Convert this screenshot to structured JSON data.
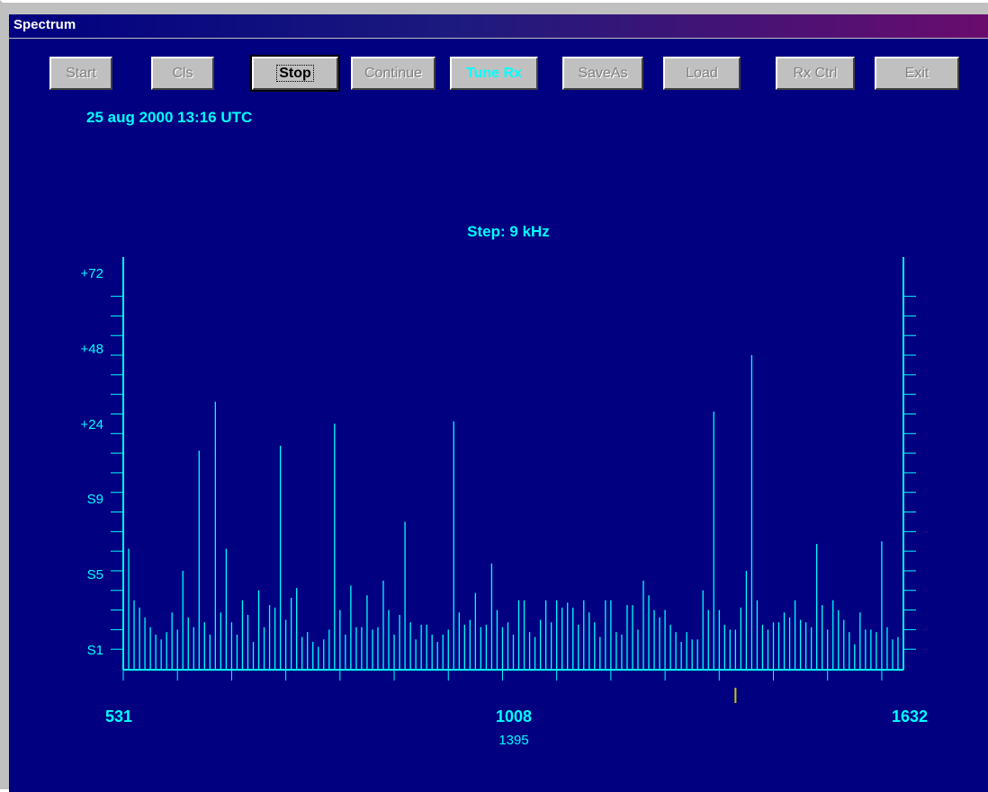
{
  "window": {
    "title": "Spectrum"
  },
  "toolbar": {
    "buttons": [
      {
        "label": "Start",
        "state": "disabled"
      },
      {
        "label": "Cls",
        "state": "disabled"
      },
      {
        "label": "Stop",
        "state": "active"
      },
      {
        "label": "Continue",
        "state": "disabled"
      },
      {
        "label": "Tune Rx",
        "state": "highlight"
      },
      {
        "label": "SaveAs",
        "state": "disabled"
      },
      {
        "label": "Load",
        "state": "disabled"
      },
      {
        "label": "Rx Ctrl",
        "state": "disabled"
      },
      {
        "label": "Exit",
        "state": "disabled"
      }
    ]
  },
  "status": {
    "timestamp": "25 aug 2000  13:16 UTC"
  },
  "colors": {
    "background": "#000080",
    "trace": "#00ffff",
    "marker": "#c8c800",
    "titlebar": "#000080"
  },
  "chart_data": {
    "type": "bar",
    "title": "Step: 9 kHz",
    "xlabel": "",
    "ylabel": "",
    "x_tick_labels": [
      "531",
      "1008",
      "1632"
    ],
    "xlim": [
      531,
      1632
    ],
    "x_step": 9,
    "marker": {
      "label": "1395",
      "x": 1395
    },
    "y_tick_labels": [
      "S1",
      "S5",
      "S9",
      "+24",
      "+48",
      "+72"
    ],
    "y_scale_note": "S1..S9 then +24 / +48 / +72 dB",
    "ylim": [
      -4,
      80
    ],
    "grid": false,
    "values": [
      14,
      20.5,
      10,
      8.5,
      6.5,
      4.5,
      3,
      2,
      3.5,
      7.5,
      4,
      16,
      6.5,
      4.5,
      40.5,
      5.5,
      3,
      50.5,
      7.5,
      20.5,
      5.5,
      3,
      10,
      7,
      1.5,
      12,
      4.5,
      9,
      8.5,
      41.5,
      6,
      10.5,
      12.5,
      2.5,
      3.5,
      1.5,
      0.5,
      2,
      4,
      46,
      8,
      3,
      13,
      4.5,
      4.5,
      11,
      4,
      4.5,
      14,
      8,
      3,
      7,
      26,
      5.5,
      2,
      5,
      5,
      3,
      1.5,
      3,
      4,
      46.5,
      7.5,
      5,
      6,
      11.5,
      4.5,
      5,
      17.5,
      8,
      4.5,
      5.5,
      3,
      10,
      10,
      3.5,
      2.5,
      6,
      10,
      5.5,
      10,
      8.5,
      9.5,
      8.5,
      5,
      10,
      7.5,
      5.5,
      2.5,
      10,
      10,
      3.5,
      3,
      9,
      9,
      4,
      14,
      11,
      8,
      6.5,
      8,
      5,
      3.5,
      1.5,
      3.5,
      2,
      2,
      12,
      8,
      48.5,
      8,
      5,
      4,
      4,
      8.5,
      16,
      60,
      10,
      5,
      4,
      5.5,
      5.5,
      7.5,
      6.5,
      10,
      6,
      5.5,
      4.5,
      21.5,
      9,
      4,
      10,
      8,
      6,
      3.5,
      1,
      7.5,
      4,
      4,
      3.5,
      22,
      4.5,
      2,
      2.5,
      1
    ]
  }
}
